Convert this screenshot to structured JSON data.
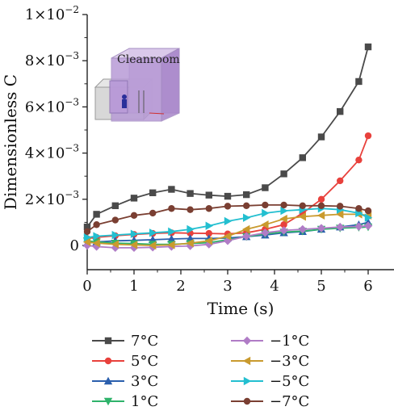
{
  "chart_data": {
    "type": "line",
    "title": "",
    "xlabel": "Time (s)",
    "ylabel": "Dimensionless C",
    "xlim": [
      0,
      6.5
    ],
    "ylim": [
      -0.001,
      0.01
    ],
    "xticks": [
      0,
      1,
      2,
      3,
      4,
      5,
      6
    ],
    "xtick_labels": [
      "0",
      "1",
      "2",
      "3",
      "4",
      "5",
      "6"
    ],
    "yticks": [
      0,
      0.002,
      0.004,
      0.006,
      0.008,
      0.01
    ],
    "ytick_labels": [
      {
        "mantissa": "0",
        "exp": ""
      },
      {
        "mantissa": "2×10",
        "exp": "−3"
      },
      {
        "mantissa": "4×10",
        "exp": "−3"
      },
      {
        "mantissa": "6×10",
        "exp": "−3"
      },
      {
        "mantissa": "8×10",
        "exp": "−3"
      },
      {
        "mantissa": "1×10",
        "exp": "−2"
      }
    ],
    "grid": false,
    "legend_position": "bottom",
    "inset_label": "Cleanroom",
    "x": [
      0,
      0.2,
      0.6,
      1.0,
      1.4,
      1.8,
      2.2,
      2.6,
      3.0,
      3.4,
      3.8,
      4.2,
      4.6,
      5.0,
      5.4,
      5.8,
      6.0
    ],
    "series": [
      {
        "name": "7°C",
        "color": "#4a4a4a",
        "marker": "square",
        "values": [
          0.0008,
          0.00135,
          0.00172,
          0.00205,
          0.00228,
          0.00243,
          0.00225,
          0.00218,
          0.00213,
          0.0022,
          0.0025,
          0.0031,
          0.0038,
          0.0047,
          0.0058,
          0.0071,
          0.0086
        ]
      },
      {
        "name": "5°C",
        "color": "#e8413c",
        "marker": "circle",
        "values": [
          0.0003,
          0.00035,
          0.00042,
          0.00048,
          0.00052,
          0.00055,
          0.00053,
          0.00052,
          0.0005,
          0.00055,
          0.0007,
          0.0009,
          0.0014,
          0.002,
          0.0028,
          0.0037,
          0.00475
        ]
      },
      {
        "name": "3°C",
        "color": "#2b5fad",
        "marker": "triangle-up",
        "values": [
          0.0001,
          0.00015,
          0.0002,
          0.00022,
          0.00025,
          0.00028,
          0.0003,
          0.0003,
          0.00032,
          0.00038,
          0.00045,
          0.00055,
          0.0006,
          0.0007,
          0.0008,
          0.0009,
          0.001
        ]
      },
      {
        "name": "1°C",
        "color": "#2fb36b",
        "marker": "triangle-down",
        "values": [
          0.0002,
          0.00015,
          0.0001,
          8e-05,
          5e-05,
          5e-05,
          8e-05,
          0.00012,
          0.00025,
          0.00038,
          0.0005,
          0.00058,
          0.00062,
          0.0007,
          0.00075,
          0.00078,
          0.0008
        ]
      },
      {
        "name": "−1°C",
        "color": "#b07cc6",
        "marker": "diamond",
        "values": [
          0.0,
          -5e-05,
          -0.0001,
          -0.0001,
          -8e-05,
          -5e-05,
          -2e-05,
          5e-05,
          0.0002,
          0.0004,
          0.00055,
          0.00065,
          0.0007,
          0.00075,
          0.0008,
          0.00082,
          0.00085
        ]
      },
      {
        "name": "−3°C",
        "color": "#c99a2e",
        "marker": "triangle-left",
        "values": [
          0.00015,
          0.0001,
          5e-05,
          2e-05,
          0.0,
          2e-05,
          0.0001,
          0.0002,
          0.0004,
          0.0007,
          0.0009,
          0.00115,
          0.00125,
          0.0013,
          0.00135,
          0.00135,
          0.0013
        ]
      },
      {
        "name": "−5°C",
        "color": "#23bfd0",
        "marker": "triangle-right",
        "values": [
          0.00035,
          0.0004,
          0.00045,
          0.0005,
          0.00055,
          0.0006,
          0.0007,
          0.00085,
          0.00105,
          0.0012,
          0.0014,
          0.0015,
          0.00155,
          0.0016,
          0.00155,
          0.0014,
          0.0012
        ]
      },
      {
        "name": "−7°C",
        "color": "#7a3f32",
        "marker": "circle",
        "values": [
          0.0006,
          0.0009,
          0.0011,
          0.0013,
          0.0014,
          0.0016,
          0.00155,
          0.0016,
          0.0017,
          0.00172,
          0.00175,
          0.00175,
          0.00172,
          0.00172,
          0.0017,
          0.0016,
          0.0015
        ]
      }
    ]
  }
}
